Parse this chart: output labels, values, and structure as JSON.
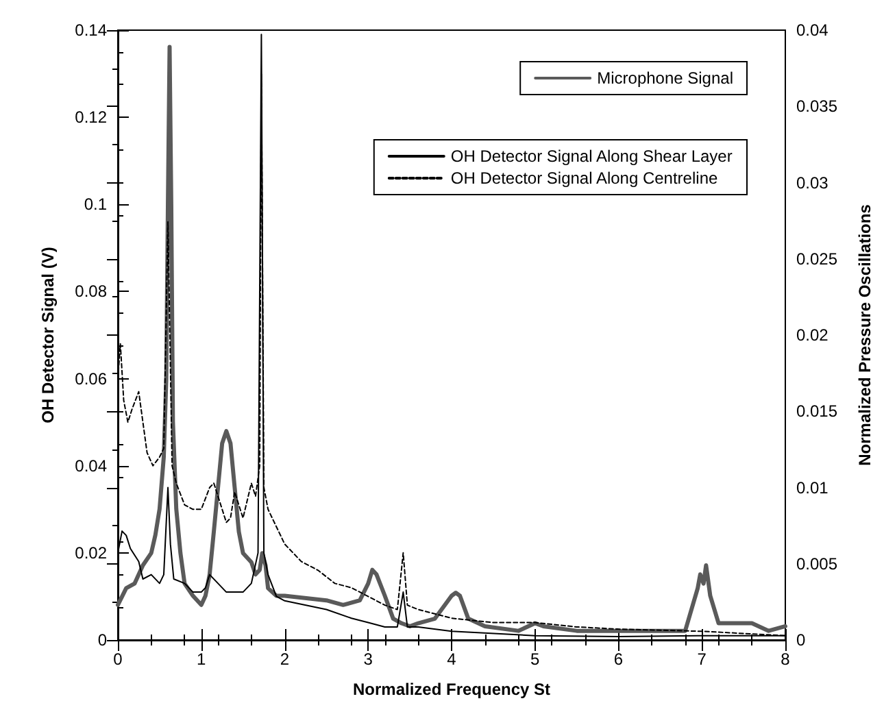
{
  "chart_data": {
    "type": "line",
    "xlabel": "Normalized Frequency St",
    "ylabel": "OH Detector Signal (V)",
    "y2label": "Normalized Pressure Oscillations",
    "xlim": [
      0,
      8
    ],
    "xticks": [
      0,
      1,
      2,
      3,
      4,
      5,
      6,
      7,
      8
    ],
    "ylim": [
      0,
      0.14
    ],
    "yticks": [
      0,
      0.02,
      0.04,
      0.06,
      0.08,
      0.1,
      0.12,
      0.14
    ],
    "y2lim": [
      0,
      0.04
    ],
    "y2ticks": [
      0,
      0.005,
      0.01,
      0.015,
      0.02,
      0.025,
      0.03,
      0.035,
      0.04
    ],
    "grid": false,
    "legend": "top right",
    "marker": "none",
    "series": [
      {
        "name": "Microphone Signal",
        "color": "#5a5a5a",
        "axis": "y2",
        "line_style": "solid",
        "x": [
          0,
          0.1,
          0.2,
          0.3,
          0.4,
          0.45,
          0.5,
          0.55,
          0.58,
          0.6,
          0.62,
          0.64,
          0.66,
          0.7,
          0.75,
          0.8,
          0.9,
          1.0,
          1.05,
          1.1,
          1.15,
          1.2,
          1.25,
          1.3,
          1.35,
          1.4,
          1.45,
          1.5,
          1.6,
          1.65,
          1.7,
          1.73,
          1.77,
          1.8,
          1.9,
          2.0,
          2.5,
          2.7,
          2.9,
          3.0,
          3.05,
          3.1,
          3.2,
          3.3,
          3.4,
          3.5,
          3.6,
          3.8,
          4.0,
          4.05,
          4.1,
          4.2,
          4.4,
          4.8,
          5.0,
          5.1,
          5.5,
          6.8,
          6.95,
          6.98,
          7.02,
          7.05,
          7.1,
          7.2,
          7.5,
          7.6,
          7.8,
          8.0
        ],
        "values": [
          0.0023,
          0.0034,
          0.0037,
          0.0049,
          0.0057,
          0.0069,
          0.0086,
          0.012,
          0.0171,
          0.0286,
          0.0389,
          0.0286,
          0.0143,
          0.0086,
          0.0057,
          0.0037,
          0.0029,
          0.0023,
          0.0029,
          0.0043,
          0.0071,
          0.01,
          0.0129,
          0.0137,
          0.0129,
          0.01,
          0.0071,
          0.0057,
          0.0051,
          0.0043,
          0.0046,
          0.0057,
          0.0049,
          0.0034,
          0.0029,
          0.0029,
          0.0026,
          0.0023,
          0.0026,
          0.0037,
          0.0046,
          0.0043,
          0.0029,
          0.0014,
          0.0011,
          0.0009,
          0.0011,
          0.0014,
          0.0029,
          0.0031,
          0.0029,
          0.0014,
          0.0009,
          0.0006,
          0.0011,
          0.0009,
          0.0006,
          0.0006,
          0.0034,
          0.0043,
          0.0037,
          0.0049,
          0.0029,
          0.0011,
          0.0011,
          0.0011,
          0.0006,
          0.0009
        ]
      },
      {
        "name": "OH Detector Signal Along Shear Layer",
        "color": "#000000",
        "line_style": "solid",
        "x": [
          0,
          0.05,
          0.1,
          0.15,
          0.25,
          0.3,
          0.4,
          0.5,
          0.55,
          0.6,
          0.63,
          0.67,
          0.8,
          0.9,
          1.0,
          1.05,
          1.1,
          1.2,
          1.3,
          1.5,
          1.6,
          1.68,
          1.72,
          1.75,
          1.8,
          1.9,
          2.0,
          2.5,
          2.8,
          3.0,
          3.2,
          3.35,
          3.42,
          3.47,
          3.6,
          4.0,
          5.0,
          6.0,
          7.0,
          8.0
        ],
        "values": [
          0.02,
          0.025,
          0.024,
          0.021,
          0.018,
          0.014,
          0.015,
          0.013,
          0.015,
          0.035,
          0.022,
          0.014,
          0.013,
          0.011,
          0.011,
          0.012,
          0.015,
          0.013,
          0.011,
          0.011,
          0.013,
          0.02,
          0.139,
          0.02,
          0.015,
          0.01,
          0.009,
          0.007,
          0.005,
          0.004,
          0.003,
          0.003,
          0.011,
          0.003,
          0.003,
          0.002,
          0.001,
          0.0008,
          0.001,
          0.001
        ]
      },
      {
        "name": "OH Detector Signal Along Centreline",
        "color": "#000000",
        "line_style": "dotted",
        "x": [
          0,
          0.03,
          0.07,
          0.12,
          0.17,
          0.25,
          0.3,
          0.35,
          0.42,
          0.5,
          0.55,
          0.6,
          0.65,
          0.7,
          0.8,
          0.9,
          1.0,
          1.1,
          1.15,
          1.25,
          1.3,
          1.35,
          1.4,
          1.5,
          1.6,
          1.65,
          1.7,
          1.72,
          1.75,
          1.8,
          1.9,
          2.0,
          2.2,
          2.4,
          2.6,
          2.8,
          3.0,
          3.2,
          3.35,
          3.42,
          3.47,
          3.6,
          4.0,
          4.5,
          5.0,
          5.5,
          6.0,
          7.0,
          8.0
        ],
        "values": [
          0.06,
          0.068,
          0.055,
          0.05,
          0.053,
          0.057,
          0.05,
          0.043,
          0.04,
          0.042,
          0.044,
          0.096,
          0.04,
          0.036,
          0.031,
          0.03,
          0.03,
          0.035,
          0.036,
          0.03,
          0.027,
          0.028,
          0.034,
          0.028,
          0.036,
          0.033,
          0.04,
          0.13,
          0.035,
          0.03,
          0.026,
          0.022,
          0.018,
          0.016,
          0.013,
          0.012,
          0.01,
          0.008,
          0.007,
          0.02,
          0.008,
          0.007,
          0.005,
          0.004,
          0.004,
          0.003,
          0.0025,
          0.002,
          0.001
        ]
      }
    ]
  }
}
